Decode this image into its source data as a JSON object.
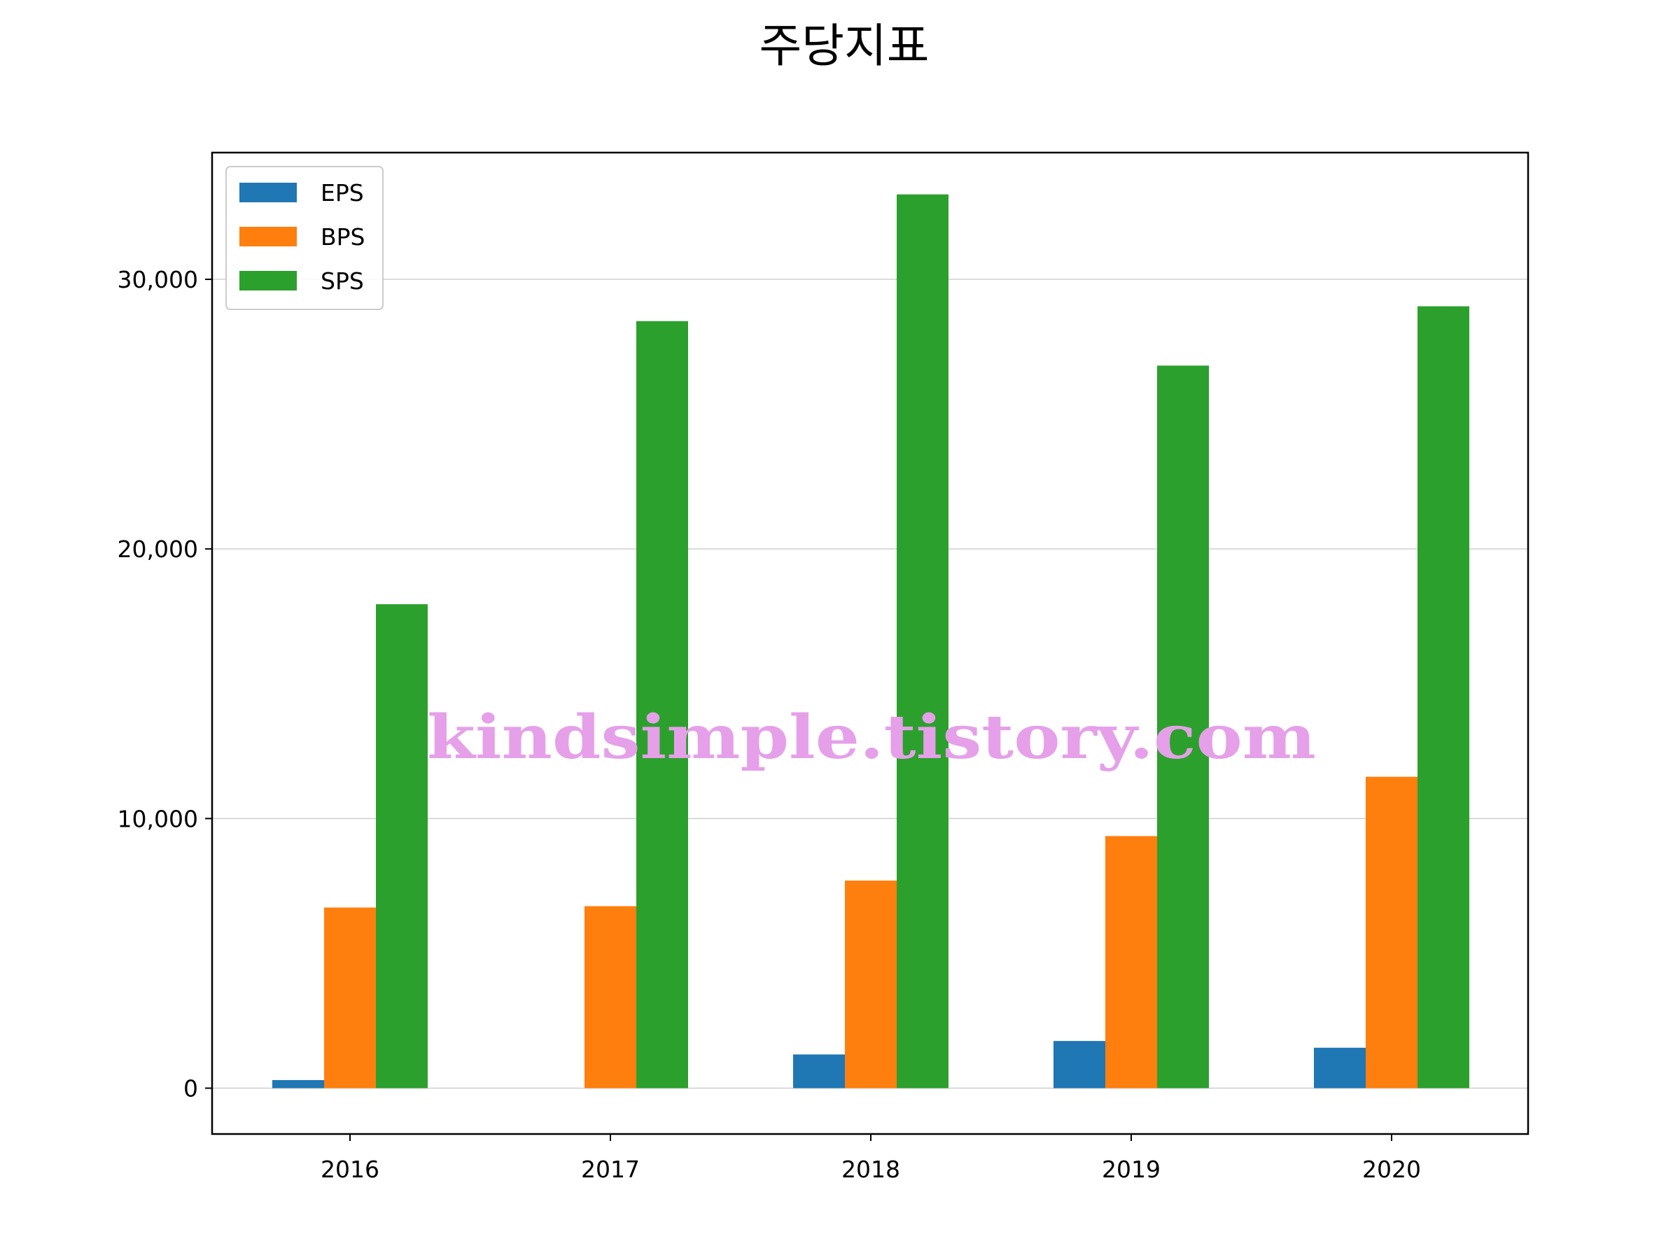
{
  "chart_data": {
    "type": "bar",
    "title": "주당지표",
    "xlabel": "",
    "ylabel": "",
    "categories": [
      "2016",
      "2017",
      "2018",
      "2019",
      "2020"
    ],
    "series": [
      {
        "name": "EPS",
        "color": "#1f77b4",
        "values": [
          300,
          0,
          1250,
          1750,
          1500
        ]
      },
      {
        "name": "BPS",
        "color": "#ff7f0e",
        "values": [
          6700,
          6750,
          7700,
          9350,
          11550
        ]
      },
      {
        "name": "SPS",
        "color": "#2ca02c",
        "values": [
          17950,
          28450,
          33150,
          26800,
          29000
        ]
      }
    ],
    "ylim": [
      -1700,
      34700
    ],
    "yticks": [
      0,
      10000,
      20000,
      30000
    ],
    "ytick_labels": [
      "0",
      "10,000",
      "20,000",
      "30,000"
    ],
    "grid": "horizontal",
    "legend_position": "top-left",
    "watermark": "kindsimple.tistory.com"
  }
}
